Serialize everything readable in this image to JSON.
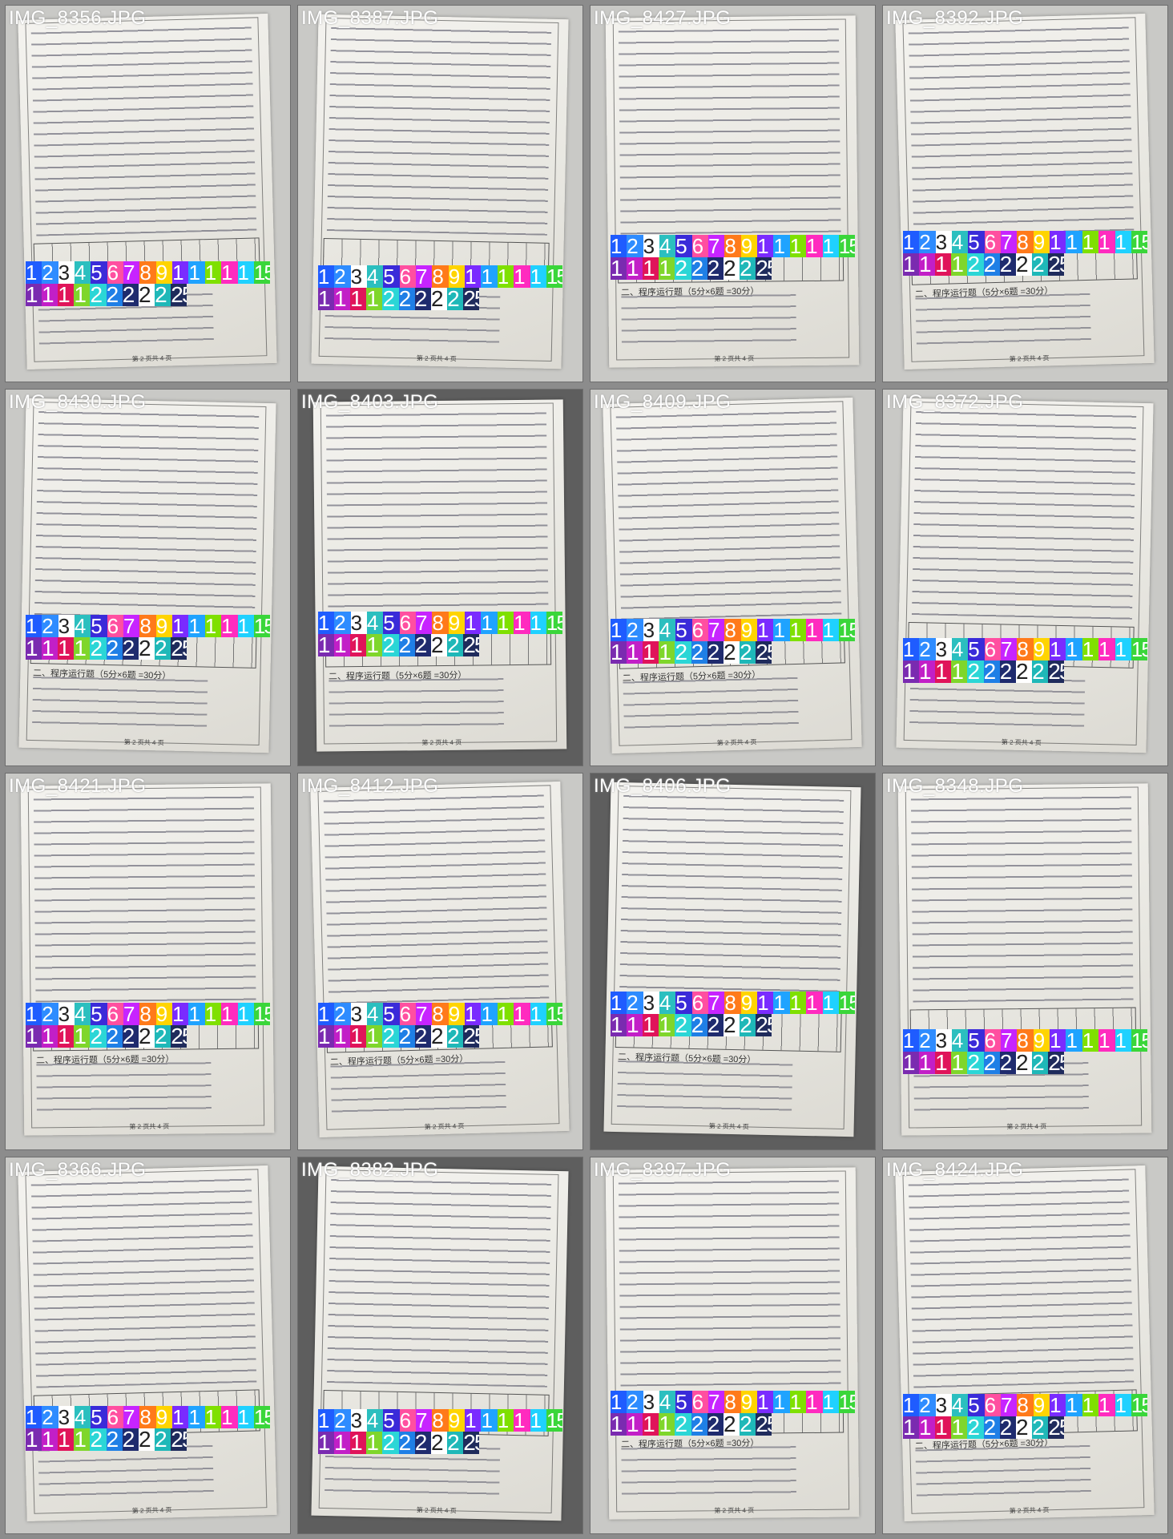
{
  "sheet": {
    "section_heading": "二、程序运行题（5分×6题 =30分）",
    "page_footer": "第 2 页共 4 页"
  },
  "colors": {
    "cells": [
      "#1f5cff",
      "#2e8cff",
      "#ffffff",
      "#2bbfbf",
      "#3a2bd9",
      "#ff4fa0",
      "#c724ff",
      "#ff7a1a",
      "#ffd400",
      "#7a2bff",
      "#1fa3ff",
      "#7fe000",
      "#ff2bbf",
      "#1fd1ff",
      "#3ad63a",
      "#1fe0a8"
    ],
    "row2": [
      "#7a2bb0",
      "#c21fc7",
      "#e0145a",
      "#7fd62b",
      "#2bd6d6",
      "#1f7fe6",
      "#1f2b6e",
      "#ffffff",
      "#1fb8b8",
      "#1f2b5c"
    ]
  },
  "strip_numbers": {
    "row1": [
      "1",
      "2",
      "3",
      "4",
      "5",
      "6",
      "7",
      "8",
      "9",
      "1",
      "1",
      "1",
      "1",
      "1",
      "15"
    ],
    "row2": [
      "1",
      "1",
      "1",
      "1",
      "2",
      "2",
      "2",
      "2",
      "2",
      "25"
    ]
  },
  "tiles": [
    {
      "label": "IMG_8356.JPG",
      "strip_top": 68
    },
    {
      "label": "IMG_8387.JPG",
      "strip_top": 69
    },
    {
      "label": "IMG_8427.JPG",
      "strip_top": 61
    },
    {
      "label": "IMG_8392.JPG",
      "strip_top": 60
    },
    {
      "label": "IMG_8430.JPG",
      "strip_top": 60
    },
    {
      "label": "IMG_8403.JPG",
      "strip_top": 59
    },
    {
      "label": "IMG_8409.JPG",
      "strip_top": 61
    },
    {
      "label": "IMG_8372.JPG",
      "strip_top": 66
    },
    {
      "label": "IMG_8421.JPG",
      "strip_top": 61
    },
    {
      "label": "IMG_8412.JPG",
      "strip_top": 61
    },
    {
      "label": "IMG_8406.JPG",
      "strip_top": 58
    },
    {
      "label": "IMG_8348.JPG",
      "strip_top": 68
    },
    {
      "label": "IMG_8366.JPG",
      "strip_top": 66
    },
    {
      "label": "IMG_8382.JPG",
      "strip_top": 67
    },
    {
      "label": "IMG_8397.JPG",
      "strip_top": 62
    },
    {
      "label": "IMG_8424.JPG",
      "strip_top": 63
    }
  ]
}
